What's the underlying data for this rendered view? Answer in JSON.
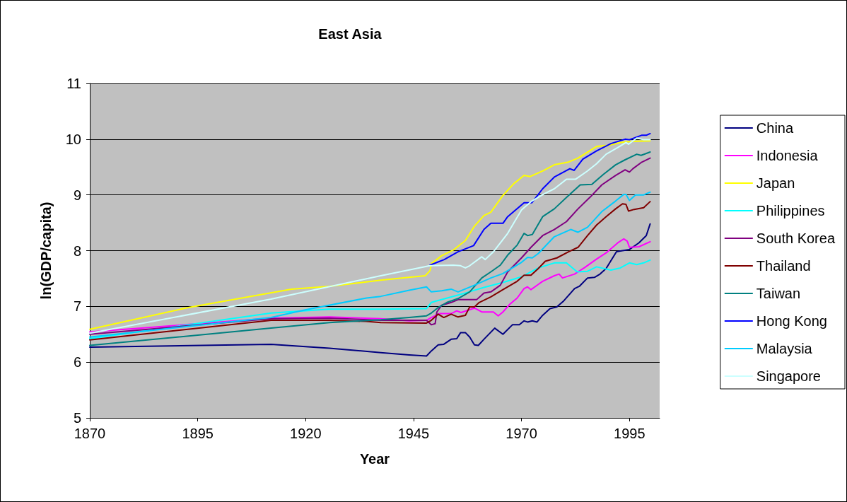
{
  "chart_data": {
    "type": "line",
    "title": "East Asia",
    "xlabel": "Year",
    "ylabel": "ln(GDP/capita)",
    "xlim": [
      1870,
      2002
    ],
    "xticks": [
      1870,
      1895,
      1920,
      1945,
      1970,
      1995
    ],
    "ylim": [
      5,
      11
    ],
    "yticks": [
      5,
      6,
      7,
      8,
      9,
      10,
      11
    ],
    "grid": "y",
    "legend": "right",
    "marker": "none",
    "line_style": "solid",
    "series": [
      {
        "name": "China",
        "color": "#000080",
        "x": [
          1870,
          1912,
          1925.5,
          1937.4,
          1944,
          1948,
          1949.1,
          1950.7,
          1952,
          1953.7,
          1955,
          1955.9,
          1957,
          1958,
          1959.1,
          1960,
          1961.3,
          1963.8,
          1965.7,
          1967.9,
          1969.5,
          1970.6,
          1971.4,
          1972.5,
          1973.6,
          1974.9,
          1976.6,
          1978.2,
          1979.8,
          1982.3,
          1983.4,
          1985.3,
          1986.9,
          1988.2,
          1989.6,
          1992,
          1993.4,
          1995,
          1997.2,
          1998.9,
          1999.8
        ],
        "values": [
          6.27,
          6.32,
          6.25,
          6.17,
          6.13,
          6.11,
          6.2,
          6.31,
          6.32,
          6.41,
          6.42,
          6.53,
          6.53,
          6.45,
          6.31,
          6.3,
          6.41,
          6.61,
          6.5,
          6.67,
          6.67,
          6.74,
          6.72,
          6.74,
          6.72,
          6.84,
          6.96,
          6.99,
          7.1,
          7.32,
          7.36,
          7.51,
          7.52,
          7.58,
          7.68,
          7.98,
          8.0,
          8.02,
          8.14,
          8.27,
          8.48
        ]
      },
      {
        "name": "Indonesia",
        "color": "#ff00ff",
        "x": [
          1870,
          1912,
          1925.5,
          1937.4,
          1944,
          1948,
          1949.1,
          1951,
          1953.7,
          1955,
          1956,
          1959.1,
          1960.8,
          1963.5,
          1964.6,
          1965.7,
          1967.3,
          1969,
          1970.6,
          1971.4,
          1972.2,
          1974.9,
          1977.6,
          1978.7,
          1979.5,
          1982.3,
          1984.7,
          1987.4,
          1989.6,
          1992.3,
          1993.7,
          1994.5,
          1995,
          1997.2,
          1999.8
        ],
        "values": [
          6.54,
          6.79,
          6.81,
          6.78,
          6.74,
          6.75,
          6.8,
          6.87,
          6.87,
          6.92,
          6.89,
          6.97,
          6.9,
          6.9,
          6.83,
          6.9,
          7.04,
          7.15,
          7.32,
          7.35,
          7.3,
          7.45,
          7.55,
          7.58,
          7.51,
          7.58,
          7.7,
          7.85,
          7.96,
          8.14,
          8.21,
          8.17,
          8.06,
          8.07,
          8.16
        ]
      },
      {
        "name": "Japan",
        "color": "#ffff00",
        "x": [
          1870,
          1892.8,
          1916.7,
          1925.5,
          1937.4,
          1943.9,
          1947.7,
          1948.8,
          1949.2,
          1951.5,
          1954.2,
          1957,
          1959.1,
          1961.3,
          1962.9,
          1965.7,
          1968.2,
          1970.6,
          1972,
          1974.9,
          1977.6,
          1980.9,
          1983.1,
          1987.4,
          1990.2,
          1992.9,
          1995.6,
          1999.8
        ],
        "values": [
          6.59,
          6.98,
          7.31,
          7.36,
          7.47,
          7.52,
          7.55,
          7.64,
          7.77,
          7.91,
          8.01,
          8.18,
          8.44,
          8.63,
          8.69,
          8.99,
          9.2,
          9.35,
          9.33,
          9.43,
          9.54,
          9.59,
          9.66,
          9.87,
          9.89,
          9.94,
          9.96,
          9.97
        ]
      },
      {
        "name": "Philippines",
        "color": "#00ffff",
        "x": [
          1870,
          1912,
          1925.5,
          1937.4,
          1948,
          1949.1,
          1950.4,
          1953.7,
          1957,
          1961.3,
          1965.7,
          1970,
          1973.9,
          1977.6,
          1980.4,
          1982.9,
          1985.3,
          1987.4,
          1990.7,
          1992.9,
          1995,
          1996.7,
          1998.3,
          1999.8
        ],
        "values": [
          6.42,
          6.88,
          6.95,
          6.95,
          6.96,
          7.07,
          7.1,
          7.17,
          7.24,
          7.34,
          7.43,
          7.53,
          7.69,
          7.78,
          7.78,
          7.62,
          7.63,
          7.71,
          7.65,
          7.69,
          7.78,
          7.75,
          7.78,
          7.83
        ]
      },
      {
        "name": "South Korea",
        "color": "#800080",
        "x": [
          1870,
          1912,
          1925.5,
          1937.4,
          1948,
          1949.1,
          1950,
          1950.4,
          1951.5,
          1953.7,
          1955.3,
          1959.6,
          1961.3,
          1962.9,
          1965.1,
          1966.8,
          1970,
          1972.2,
          1974.9,
          1977.6,
          1980.4,
          1983.1,
          1985.9,
          1988.6,
          1991.8,
          1994,
          1995,
          1995.8,
          1997.7,
          1999.8
        ],
        "values": [
          6.5,
          6.78,
          6.79,
          6.75,
          6.75,
          6.67,
          6.69,
          6.9,
          7.02,
          7.07,
          7.12,
          7.12,
          7.24,
          7.26,
          7.38,
          7.62,
          7.87,
          8.06,
          8.27,
          8.38,
          8.52,
          8.75,
          8.96,
          9.18,
          9.35,
          9.45,
          9.41,
          9.47,
          9.58,
          9.66
        ]
      },
      {
        "name": "Thailand",
        "color": "#800000",
        "x": [
          1870,
          1912,
          1925.5,
          1934,
          1937.4,
          1948,
          1949.1,
          1950.7,
          1952,
          1953.7,
          1955.3,
          1957,
          1958,
          1959.1,
          1960.2,
          1962.9,
          1965.7,
          1969,
          1970.6,
          1972.2,
          1973.9,
          1975.5,
          1978.2,
          1980.9,
          1983.1,
          1985.3,
          1987.4,
          1989.6,
          1991.8,
          1993.4,
          1994.2,
          1994.8,
          1996.1,
          1998.3,
          1999.8
        ],
        "values": [
          6.4,
          6.75,
          6.75,
          6.73,
          6.71,
          6.7,
          6.75,
          6.86,
          6.8,
          6.86,
          6.81,
          6.84,
          6.99,
          6.99,
          7.07,
          7.17,
          7.3,
          7.45,
          7.56,
          7.56,
          7.68,
          7.81,
          7.87,
          7.98,
          8.06,
          8.27,
          8.46,
          8.61,
          8.75,
          8.84,
          8.83,
          8.71,
          8.74,
          8.77,
          8.88
        ]
      },
      {
        "name": "Taiwan",
        "color": "#008080",
        "x": [
          1870,
          1912,
          1925.5,
          1937.4,
          1944,
          1948,
          1949.1,
          1950.7,
          1952.7,
          1955.3,
          1958,
          1960.8,
          1962.9,
          1965.1,
          1966.8,
          1969,
          1970.6,
          1971.4,
          1972.5,
          1974.9,
          1977.6,
          1980.9,
          1983.6,
          1986.3,
          1989,
          1991.8,
          1994,
          1996.7,
          1997.7,
          1999.8
        ],
        "values": [
          6.3,
          6.61,
          6.71,
          6.76,
          6.8,
          6.83,
          6.88,
          6.98,
          7.07,
          7.14,
          7.26,
          7.51,
          7.62,
          7.74,
          7.92,
          8.1,
          8.31,
          8.27,
          8.29,
          8.61,
          8.75,
          8.99,
          9.18,
          9.19,
          9.37,
          9.54,
          9.63,
          9.73,
          9.71,
          9.77
        ]
      },
      {
        "name": "Hong Kong",
        "color": "#0000ff",
        "x": [
          1948.8,
          1952.1,
          1955.3,
          1958.9,
          1961.3,
          1962.9,
          1965.7,
          1966.8,
          1970.6,
          1972.4,
          1974.9,
          1977.6,
          1981.2,
          1982.2,
          1984.2,
          1987.4,
          1990.7,
          1994,
          1995,
          1997.8,
          1998.9,
          1999.8
        ],
        "values": [
          7.74,
          7.84,
          7.98,
          8.09,
          8.38,
          8.49,
          8.49,
          8.61,
          8.86,
          8.86,
          9.11,
          9.32,
          9.47,
          9.44,
          9.64,
          9.79,
          9.92,
          10.0,
          9.99,
          10.07,
          10.07,
          10.1
        ]
      },
      {
        "name": "Malaysia",
        "color": "#00ccff",
        "x": [
          1870,
          1912,
          1920.1,
          1934.1,
          1937.4,
          1944,
          1948,
          1949.1,
          1951.5,
          1953.7,
          1955.3,
          1959.1,
          1962.9,
          1965.7,
          1970,
          1971.4,
          1972.5,
          1973.9,
          1977.6,
          1981.4,
          1983.1,
          1985.3,
          1988.6,
          1991.8,
          1993.7,
          1994.2,
          1995,
          1996.4,
          1998.3,
          1999.8
        ],
        "values": [
          6.45,
          6.8,
          6.94,
          7.15,
          7.18,
          7.29,
          7.35,
          7.26,
          7.28,
          7.31,
          7.26,
          7.38,
          7.51,
          7.59,
          7.79,
          7.88,
          7.87,
          7.95,
          8.25,
          8.38,
          8.33,
          8.42,
          8.7,
          8.89,
          9.01,
          9.01,
          8.9,
          9.0,
          9.0,
          9.05
        ]
      },
      {
        "name": "Singapore",
        "color": "#ccffff",
        "x": [
          1870,
          1912,
          1937.4,
          1948.8,
          1954.2,
          1955.9,
          1957,
          1958,
          1960.8,
          1961.6,
          1963.5,
          1966.8,
          1970,
          1972.2,
          1975.5,
          1977.6,
          1980.4,
          1982.5,
          1985.3,
          1987.4,
          1989.6,
          1992.3,
          1994.2,
          1994.8,
          1996.7,
          1998.3,
          1999.8
        ],
        "values": [
          6.52,
          7.13,
          7.55,
          7.73,
          7.74,
          7.73,
          7.69,
          7.73,
          7.89,
          7.84,
          7.98,
          8.31,
          8.73,
          8.88,
          9.03,
          9.11,
          9.28,
          9.28,
          9.43,
          9.56,
          9.73,
          9.85,
          9.94,
          9.91,
          10.02,
          9.99,
          9.99
        ]
      }
    ]
  }
}
